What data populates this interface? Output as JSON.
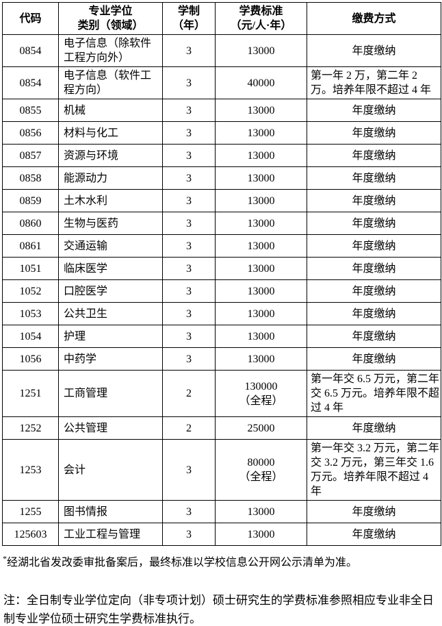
{
  "table": {
    "headers": {
      "code": "代码",
      "category": "专业学位\n类别（领域）",
      "duration": "学制\n（年）",
      "tuition": "学费标准\n（元/人·年）",
      "payment": "缴费方式"
    },
    "rows": [
      {
        "code": "0854",
        "field": "电子信息（除软件工程方向外）",
        "years": "3",
        "tuition": "13000",
        "payment": "年度缴纳"
      },
      {
        "code": "0854",
        "field": "电子信息（软件工程方向）",
        "years": "3",
        "tuition": "40000",
        "payment": "第一年 2 万，第二年 2 万。培养年限不超过 4 年"
      },
      {
        "code": "0855",
        "field": "机械",
        "years": "3",
        "tuition": "13000",
        "payment": "年度缴纳"
      },
      {
        "code": "0856",
        "field": "材料与化工",
        "years": "3",
        "tuition": "13000",
        "payment": "年度缴纳"
      },
      {
        "code": "0857",
        "field": "资源与环境",
        "years": "3",
        "tuition": "13000",
        "payment": "年度缴纳"
      },
      {
        "code": "0858",
        "field": "能源动力",
        "years": "3",
        "tuition": "13000",
        "payment": "年度缴纳"
      },
      {
        "code": "0859",
        "field": "土木水利",
        "years": "3",
        "tuition": "13000",
        "payment": "年度缴纳"
      },
      {
        "code": "0860",
        "field": "生物与医药",
        "years": "3",
        "tuition": "13000",
        "payment": "年度缴纳"
      },
      {
        "code": "0861",
        "field": "交通运输",
        "years": "3",
        "tuition": "13000",
        "payment": "年度缴纳"
      },
      {
        "code": "1051",
        "field": "临床医学",
        "years": "3",
        "tuition": "13000",
        "payment": "年度缴纳"
      },
      {
        "code": "1052",
        "field": "口腔医学",
        "years": "3",
        "tuition": "13000",
        "payment": "年度缴纳"
      },
      {
        "code": "1053",
        "field": "公共卫生",
        "years": "3",
        "tuition": "13000",
        "payment": "年度缴纳"
      },
      {
        "code": "1054",
        "field": "护理",
        "years": "3",
        "tuition": "13000",
        "payment": "年度缴纳"
      },
      {
        "code": "1056",
        "field": "中药学",
        "years": "3",
        "tuition": "13000",
        "payment": "年度缴纳"
      },
      {
        "code": "1251",
        "field": "工商管理",
        "years": "2",
        "tuition": "130000\n（全程）",
        "payment": "第一年交 6.5 万元，第二年交 6.5 万元。培养年限不超过 4 年"
      },
      {
        "code": "1252",
        "field": "公共管理",
        "years": "2",
        "tuition": "25000",
        "payment": "年度缴纳"
      },
      {
        "code": "1253",
        "field": "会计",
        "years": "3",
        "tuition": "80000\n（全程）",
        "payment": "第一年交 3.2 万元，第二年交 3.2 万元，第三年交 1.6 万元。培养年限不超过 4 年"
      },
      {
        "code": "1255",
        "field": "图书情报",
        "years": "3",
        "tuition": "13000",
        "payment": "年度缴纳"
      },
      {
        "code": "125603",
        "field": "工业工程与管理",
        "years": "3",
        "tuition": "13000",
        "payment": "年度缴纳"
      }
    ]
  },
  "notes": {
    "footnote_marker": "*",
    "footnote_text": "经湖北省发改委审批备案后，最终标准以学校信息公开网公示清单为准。",
    "note_text": "注：全日制专业学位定向（非专项计划）硕士研究生的学费标准参照相应专业非全日制专业学位硕士研究生学费标准执行。"
  }
}
